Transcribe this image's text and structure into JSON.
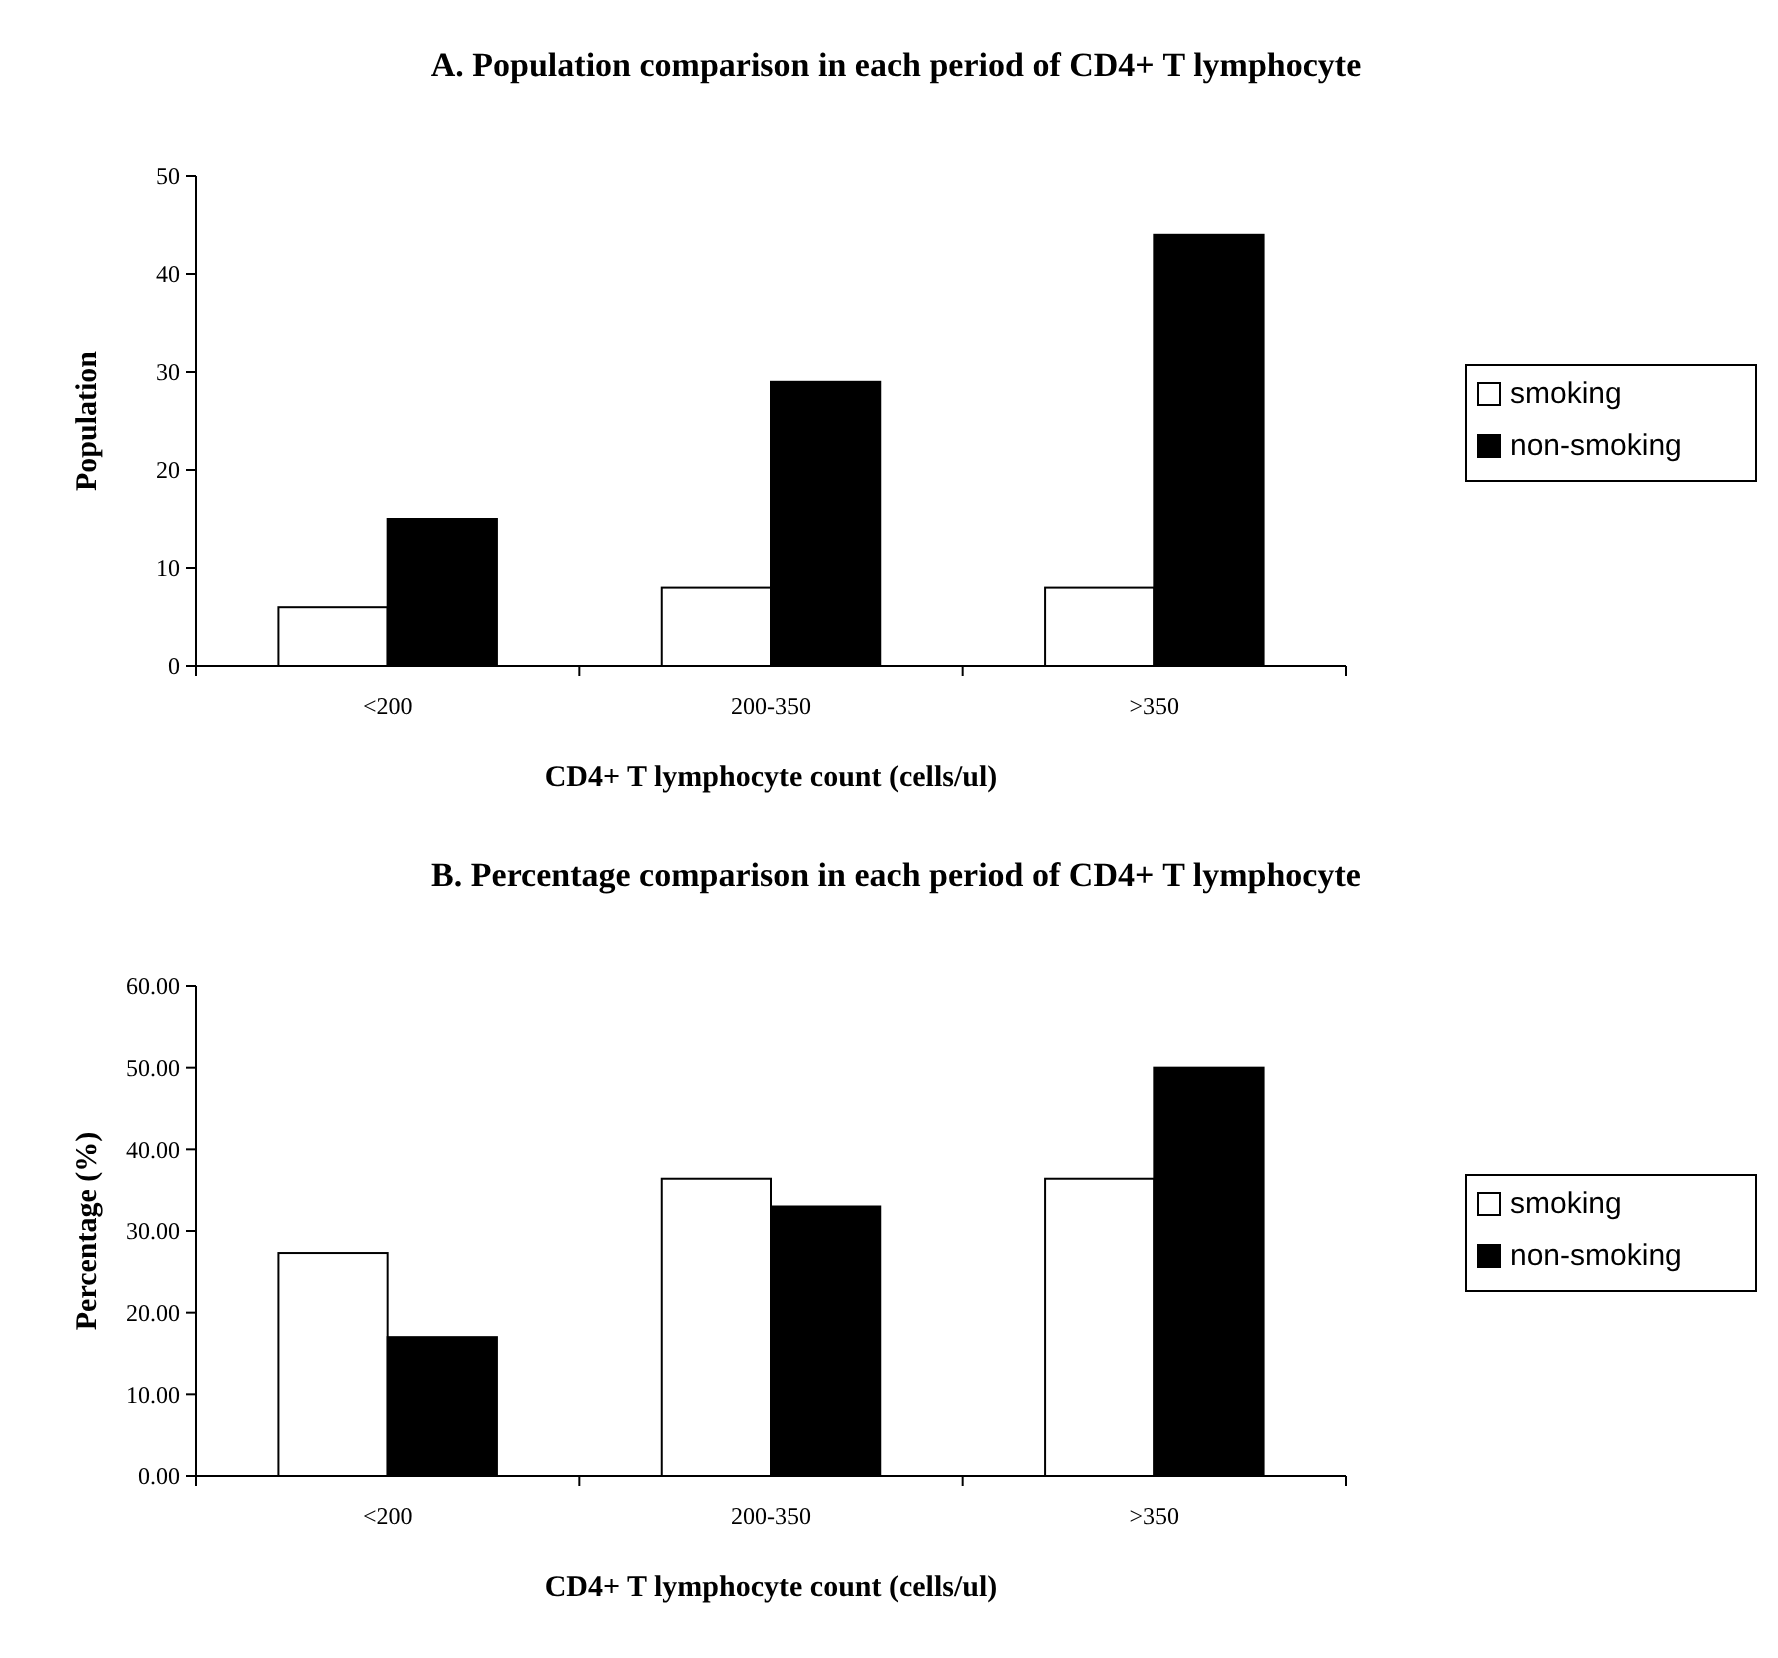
{
  "chart_data": [
    {
      "type": "bar",
      "title": "A. Population comparison in each period of CD4+ T lymphocyte",
      "xlabel": "CD4+ T lymphocyte count (cells/ul)",
      "ylabel": "Population",
      "categories": [
        "<200",
        "200-350",
        ">350"
      ],
      "series": [
        {
          "name": "smoking",
          "color": "#ffffff",
          "values": [
            6,
            8,
            8
          ]
        },
        {
          "name": "non-smoking",
          "color": "#000000",
          "values": [
            15,
            29,
            44
          ]
        }
      ],
      "ylim": [
        0,
        50
      ],
      "yticks": [
        0,
        10,
        20,
        30,
        40,
        50
      ],
      "legend": "right",
      "grid": false
    },
    {
      "type": "bar",
      "title": "B. Percentage comparison in each period of CD4+ T lymphocyte",
      "xlabel": "CD4+ T lymphocyte count (cells/ul)",
      "ylabel": "Percentage (%)",
      "categories": [
        "<200",
        "200-350",
        ">350"
      ],
      "series": [
        {
          "name": "smoking",
          "color": "#ffffff",
          "values": [
            27.3,
            36.4,
            36.4
          ]
        },
        {
          "name": "non-smoking",
          "color": "#000000",
          "values": [
            17.0,
            33.0,
            50.0
          ]
        }
      ],
      "ylim": [
        0,
        60
      ],
      "yticks": [
        {
          "value": 0,
          "label": "0.00"
        },
        {
          "value": 10,
          "label": "10.00"
        },
        {
          "value": 20,
          "label": "20.00"
        },
        {
          "value": 30,
          "label": "30.00"
        },
        {
          "value": 40,
          "label": "40.00"
        },
        {
          "value": 50,
          "label": "50.00"
        },
        {
          "value": 60,
          "label": "60.00"
        }
      ],
      "legend": "right",
      "grid": false
    }
  ]
}
